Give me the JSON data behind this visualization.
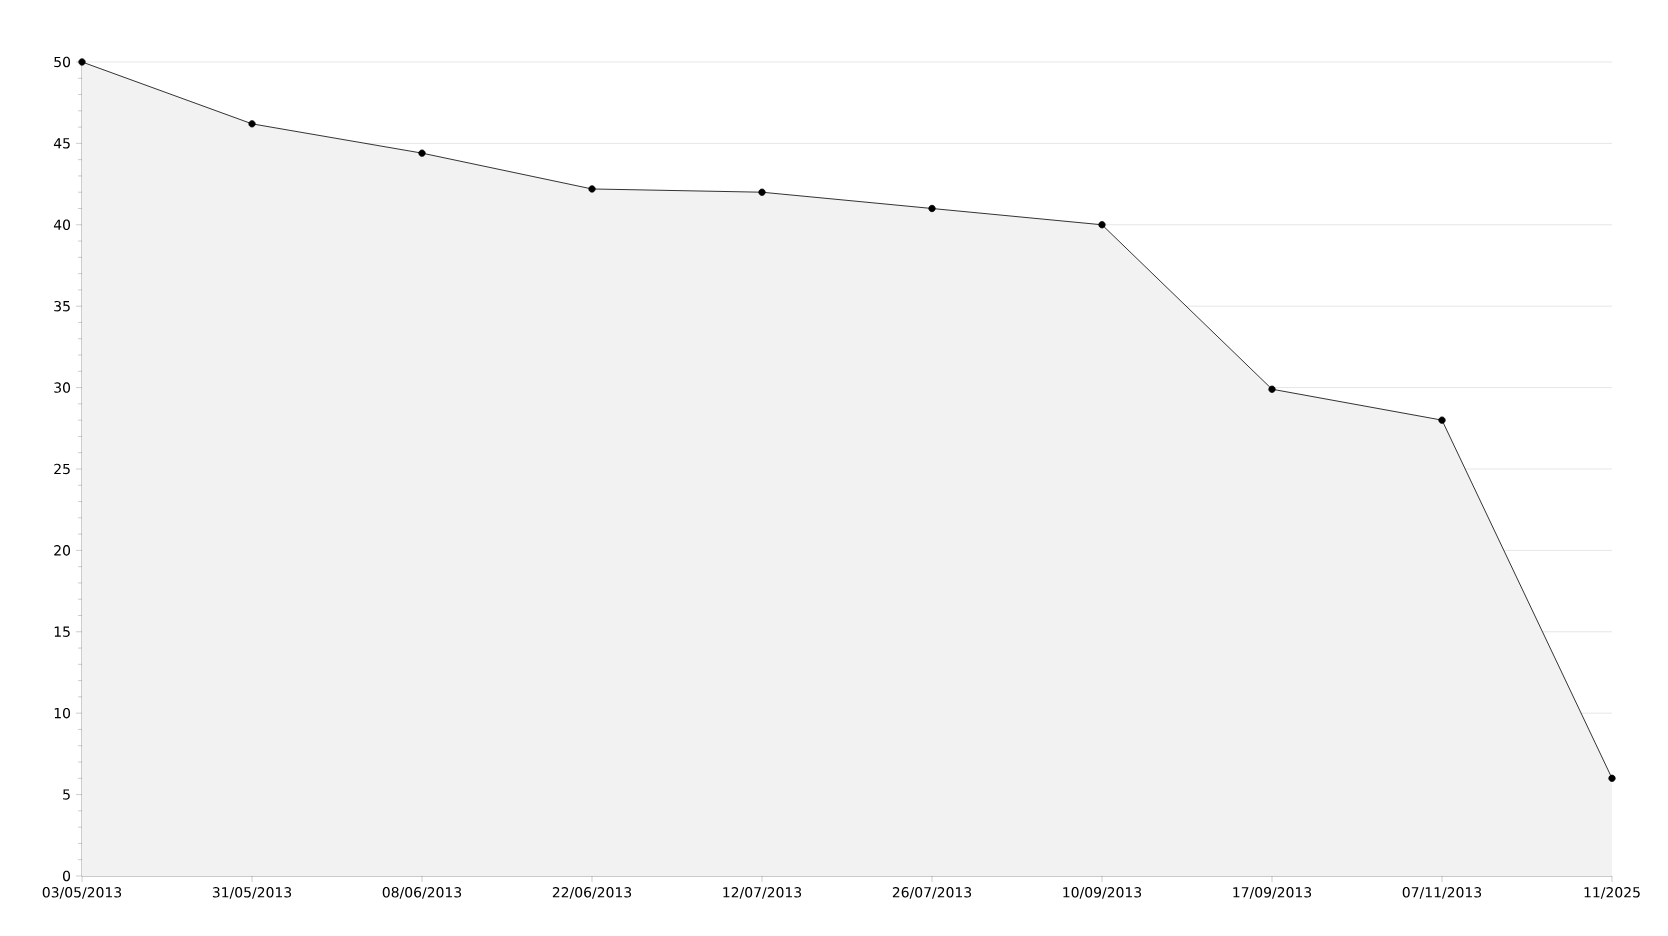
{
  "chart_data": {
    "type": "area",
    "categories": [
      "03/05/2013",
      "31/05/2013",
      "08/06/2013",
      "22/06/2013",
      "12/07/2013",
      "26/07/2013",
      "10/09/2013",
      "17/09/2013",
      "07/11/2013",
      "11/2025"
    ],
    "values": [
      50,
      46.2,
      44.4,
      42.2,
      42,
      41,
      40,
      29.9,
      28,
      6
    ],
    "color": "#000000",
    "ylim": [
      0,
      50
    ],
    "yticks": [
      0,
      5,
      10,
      15,
      20,
      25,
      30,
      35,
      40,
      45,
      50
    ],
    "grid": "y",
    "marker": "circle",
    "line_style": "solid"
  }
}
